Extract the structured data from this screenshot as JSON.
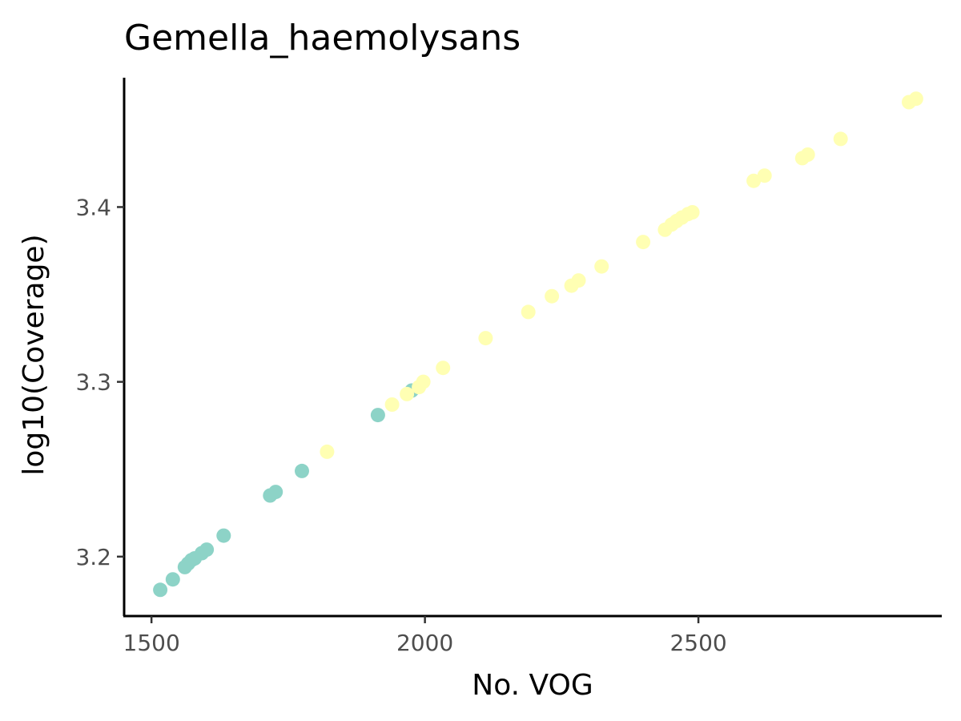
{
  "chart_data": {
    "type": "scatter",
    "title": "Gemella_haemolysans",
    "xlabel": "No. VOG",
    "ylabel": "log10(Coverage)",
    "xlim": [
      1450,
      2945
    ],
    "ylim": [
      3.166,
      3.474
    ],
    "x_ticks": [
      1500,
      2000,
      2500
    ],
    "x_tick_labels": [
      "1500",
      "2000",
      "2500"
    ],
    "y_ticks": [
      3.2,
      3.3,
      3.4
    ],
    "y_tick_labels": [
      "3.2",
      "3.3",
      "3.4"
    ],
    "grid": false,
    "legend": "none",
    "series": [
      {
        "color": "#8dd3c7",
        "x": [
          1516,
          1539,
          1561,
          1567,
          1573,
          1579,
          1592,
          1601,
          1632,
          1717,
          1727,
          1775,
          1914,
          1976
        ],
        "y": [
          3.181,
          3.187,
          3.194,
          3.196,
          3.198,
          3.199,
          3.202,
          3.204,
          3.212,
          3.235,
          3.237,
          3.249,
          3.281,
          3.295
        ]
      },
      {
        "color": "#ffffb3",
        "x": [
          1821,
          1940,
          1967,
          1989,
          1997,
          2033,
          2111,
          2189,
          2232,
          2268,
          2281,
          2323,
          2399,
          2439,
          2451,
          2460,
          2470,
          2481,
          2489,
          2601,
          2621,
          2690,
          2700,
          2760,
          2885,
          2898
        ],
        "y": [
          3.26,
          3.287,
          3.293,
          3.297,
          3.3,
          3.308,
          3.325,
          3.34,
          3.349,
          3.355,
          3.358,
          3.366,
          3.38,
          3.387,
          3.39,
          3.392,
          3.394,
          3.396,
          3.397,
          3.415,
          3.418,
          3.428,
          3.43,
          3.439,
          3.46,
          3.462
        ]
      }
    ]
  }
}
